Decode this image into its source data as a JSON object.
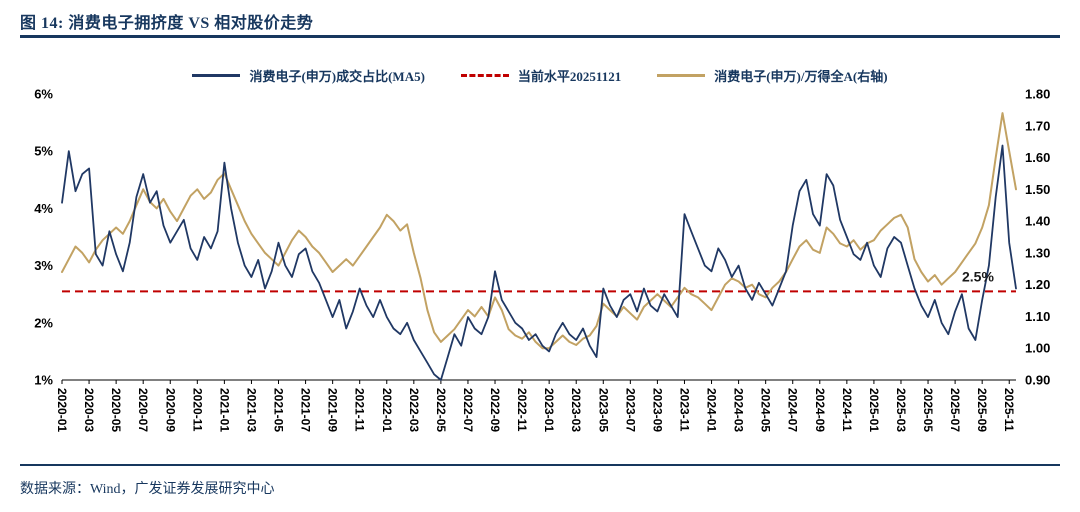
{
  "page": {
    "title": "图 14:  消费电子拥挤度 VS 相对股价走势",
    "source": "数据来源：Wind，广发证券发展研究中心"
  },
  "colors": {
    "navy": "#203864",
    "tan": "#C2A263",
    "red": "#C00000",
    "title_navy": "#17375E"
  },
  "chart_data": {
    "type": "line",
    "title": "消费电子拥挤度 VS 相对股价走势",
    "legend_position": "top",
    "grid": false,
    "points_per_tick": 4,
    "x_tick_labels": [
      "2020-01",
      "2020-03",
      "2020-05",
      "2020-07",
      "2020-09",
      "2020-11",
      "2021-01",
      "2021-03",
      "2021-05",
      "2021-07",
      "2021-09",
      "2021-11",
      "2022-01",
      "2022-03",
      "2022-05",
      "2022-07",
      "2022-09",
      "2022-11",
      "2023-01",
      "2023-03",
      "2023-05",
      "2023-07",
      "2023-09",
      "2023-11",
      "2024-01",
      "2024-03",
      "2024-05",
      "2024-07",
      "2024-09",
      "2024-11",
      "2025-01",
      "2025-03",
      "2025-05",
      "2025-07",
      "2025-09",
      "2025-11"
    ],
    "left_axis": {
      "min": 1,
      "max": 6,
      "ticks": [
        "6%",
        "5%",
        "4%",
        "3%",
        "2%",
        "1%"
      ]
    },
    "right_axis": {
      "min": 0.9,
      "max": 1.8,
      "ticks": [
        "1.80",
        "1.70",
        "1.60",
        "1.50",
        "1.40",
        "1.30",
        "1.20",
        "1.10",
        "1.00",
        "0.90"
      ]
    },
    "annotation": {
      "text": "2.5%"
    },
    "series": [
      {
        "name": "消费电子(申万)成交占比(MA5)",
        "axis": "left",
        "style": "solid",
        "color": "#203864",
        "values": [
          4.1,
          5.0,
          4.3,
          4.6,
          4.7,
          3.2,
          3.0,
          3.6,
          3.2,
          2.9,
          3.4,
          4.2,
          4.6,
          4.1,
          4.3,
          3.7,
          3.4,
          3.6,
          3.8,
          3.3,
          3.1,
          3.5,
          3.3,
          3.6,
          4.8,
          4.0,
          3.4,
          3.0,
          2.8,
          3.1,
          2.6,
          2.9,
          3.4,
          3.0,
          2.8,
          3.2,
          3.3,
          2.9,
          2.7,
          2.4,
          2.1,
          2.4,
          1.9,
          2.2,
          2.6,
          2.3,
          2.1,
          2.4,
          2.1,
          1.9,
          1.8,
          2.0,
          1.7,
          1.5,
          1.3,
          1.1,
          1.0,
          1.4,
          1.8,
          1.6,
          2.1,
          1.9,
          1.8,
          2.1,
          2.9,
          2.4,
          2.2,
          2.0,
          1.9,
          1.7,
          1.8,
          1.6,
          1.5,
          1.8,
          2.0,
          1.8,
          1.7,
          1.9,
          1.6,
          1.4,
          2.6,
          2.3,
          2.1,
          2.4,
          2.5,
          2.2,
          2.6,
          2.3,
          2.2,
          2.5,
          2.3,
          2.1,
          3.9,
          3.6,
          3.3,
          3.0,
          2.9,
          3.3,
          3.1,
          2.8,
          3.0,
          2.6,
          2.4,
          2.7,
          2.5,
          2.3,
          2.6,
          2.9,
          3.7,
          4.3,
          4.5,
          3.9,
          3.7,
          4.6,
          4.4,
          3.8,
          3.5,
          3.2,
          3.1,
          3.4,
          3.0,
          2.8,
          3.3,
          3.5,
          3.4,
          3.0,
          2.6,
          2.3,
          2.1,
          2.4,
          2.0,
          1.8,
          2.2,
          2.5,
          1.9,
          1.7,
          2.4,
          3.0,
          4.2,
          5.1,
          3.4,
          2.6
        ]
      },
      {
        "name": "当前水平20251121",
        "axis": "left",
        "style": "dashed",
        "color": "#C00000",
        "value": 2.55
      },
      {
        "name": "消费电子(申万)/万得全A(右轴)",
        "axis": "right",
        "style": "solid",
        "color": "#C2A263",
        "values": [
          1.24,
          1.28,
          1.32,
          1.3,
          1.27,
          1.31,
          1.34,
          1.36,
          1.38,
          1.36,
          1.4,
          1.45,
          1.5,
          1.46,
          1.44,
          1.47,
          1.43,
          1.4,
          1.44,
          1.48,
          1.5,
          1.47,
          1.49,
          1.53,
          1.55,
          1.5,
          1.45,
          1.4,
          1.36,
          1.33,
          1.3,
          1.28,
          1.26,
          1.3,
          1.34,
          1.37,
          1.35,
          1.32,
          1.3,
          1.27,
          1.24,
          1.26,
          1.28,
          1.26,
          1.29,
          1.32,
          1.35,
          1.38,
          1.42,
          1.4,
          1.37,
          1.39,
          1.3,
          1.22,
          1.12,
          1.05,
          1.02,
          1.04,
          1.06,
          1.09,
          1.12,
          1.1,
          1.13,
          1.1,
          1.16,
          1.12,
          1.06,
          1.04,
          1.03,
          1.05,
          1.02,
          1.0,
          1.0,
          1.02,
          1.04,
          1.02,
          1.01,
          1.03,
          1.04,
          1.07,
          1.14,
          1.12,
          1.1,
          1.13,
          1.11,
          1.09,
          1.13,
          1.15,
          1.17,
          1.15,
          1.13,
          1.16,
          1.19,
          1.17,
          1.16,
          1.14,
          1.12,
          1.16,
          1.2,
          1.22,
          1.21,
          1.19,
          1.2,
          1.17,
          1.16,
          1.19,
          1.21,
          1.24,
          1.28,
          1.32,
          1.34,
          1.31,
          1.3,
          1.38,
          1.36,
          1.33,
          1.32,
          1.34,
          1.31,
          1.33,
          1.34,
          1.37,
          1.39,
          1.41,
          1.42,
          1.38,
          1.28,
          1.24,
          1.21,
          1.23,
          1.2,
          1.22,
          1.24,
          1.27,
          1.3,
          1.33,
          1.38,
          1.45,
          1.6,
          1.74,
          1.62,
          1.5
        ]
      }
    ]
  }
}
